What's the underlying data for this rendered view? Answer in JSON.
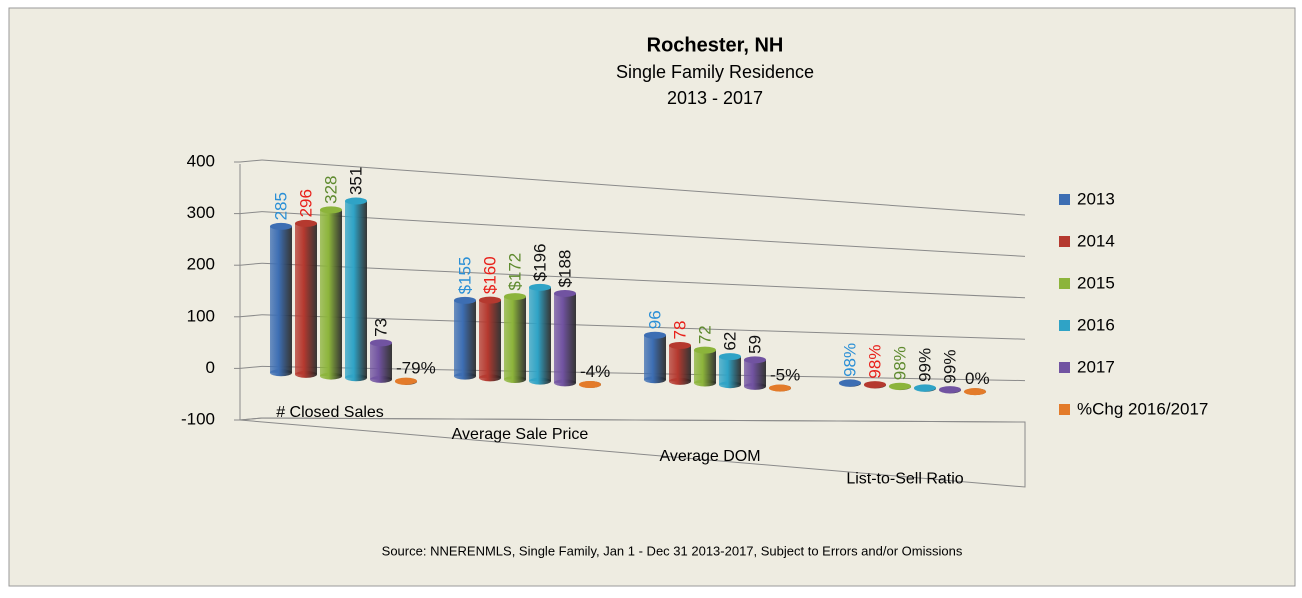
{
  "chart_data": {
    "type": "bar3d",
    "title": "Rochester, NH",
    "subtitle": "Single Family Residence",
    "subtitle2": "2013 - 2017",
    "source": "Source: NNERENMLS, Single Family, Jan 1 - Dec 31 2013-2017, Subject to Errors and/or Omissions",
    "categories": [
      "# Closed Sales",
      "Average Sale Price",
      "Average DOM",
      "List-to-Sell Ratio"
    ],
    "series": [
      {
        "name": "2013",
        "color": "#3d6eb3",
        "label_color": "#2a8fd6",
        "values": [
          285,
          155,
          96,
          0.98
        ],
        "value_labels": [
          "285",
          "$155",
          "96",
          "98%"
        ]
      },
      {
        "name": "2014",
        "color": "#b5392f",
        "label_color": "#e8201a",
        "values": [
          296,
          160,
          78,
          0.98
        ],
        "value_labels": [
          "296",
          "$160",
          "78",
          "98%"
        ]
      },
      {
        "name": "2015",
        "color": "#8cb43b",
        "label_color": "#5e8a2e",
        "values": [
          328,
          172,
          72,
          0.98
        ],
        "value_labels": [
          "328",
          "$172",
          "72",
          "98%"
        ]
      },
      {
        "name": "2016",
        "color": "#2fa3c6",
        "label_color": "#111111",
        "values": [
          351,
          196,
          62,
          0.99
        ],
        "value_labels": [
          "351",
          "$196",
          "62",
          "99%"
        ]
      },
      {
        "name": "2017",
        "color": "#7153a1",
        "label_color": "#111111",
        "values": [
          73,
          188,
          59,
          0.99
        ],
        "value_labels": [
          "73",
          "$188",
          "59",
          "99%"
        ]
      },
      {
        "name": "%Chg 2016/2017",
        "color": "#e37b2a",
        "label_color": "#111111",
        "values": [
          -0.79,
          -0.04,
          -0.05,
          0
        ],
        "value_labels": [
          "-79%",
          "-4%",
          "-5%",
          "0%"
        ]
      }
    ],
    "ylim": [
      -100,
      400
    ],
    "yticks": [
      -100,
      0,
      100,
      200,
      300,
      400
    ],
    "grid": true,
    "legend": "right"
  }
}
